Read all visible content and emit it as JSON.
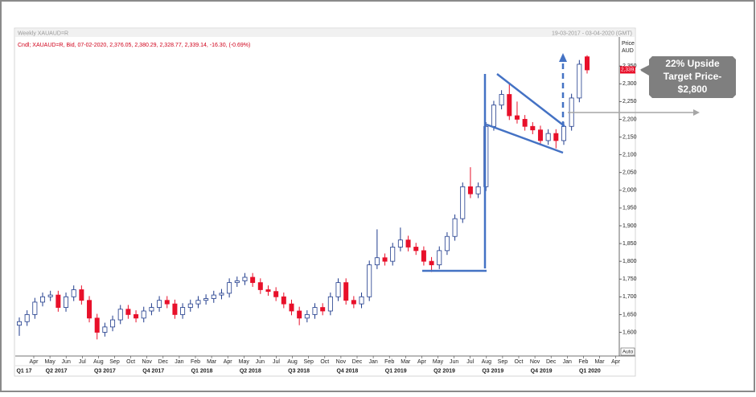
{
  "chart_data": {
    "type": "candlestick",
    "header": "Weekly XAUAUD=R",
    "date_range": "19-03-2017 - 03-04-2020 (GMT)",
    "legend_text": "Cndl; XAUAUD=R, Bid, 07-02-2020, 2,376.05, 2,380.29, 2,328.77, 2,339.14, -16.30, (-0.69%)",
    "y_axis_label": "Price",
    "y_axis_unit": "AUD",
    "last_price": {
      "value": 2339.14,
      "label": "2,339.14"
    },
    "auto_button": "Auto",
    "annotation": [
      "22% Upside",
      "Target Price-",
      "$2,800"
    ],
    "ylim": [
      1540,
      2450
    ],
    "yticks": [
      {
        "value": 1600,
        "label": "1,600"
      },
      {
        "value": 1650,
        "label": "1,650"
      },
      {
        "value": 1700,
        "label": "1,700"
      },
      {
        "value": 1750,
        "label": "1,750"
      },
      {
        "value": 1800,
        "label": "1,800"
      },
      {
        "value": 1850,
        "label": "1,850"
      },
      {
        "value": 1900,
        "label": "1,900"
      },
      {
        "value": 1950,
        "label": "1,950"
      },
      {
        "value": 2000,
        "label": "2,000"
      },
      {
        "value": 2050,
        "label": "2,050"
      },
      {
        "value": 2100,
        "label": "2,100"
      },
      {
        "value": 2150,
        "label": "2,150"
      },
      {
        "value": 2200,
        "label": "2,200"
      },
      {
        "value": 2250,
        "label": "2,250"
      },
      {
        "value": 2300,
        "label": "2,300"
      },
      {
        "value": 2350,
        "label": "2,350"
      }
    ],
    "months": [
      "Apr",
      "May",
      "Jun",
      "Jul",
      "Aug",
      "Sep",
      "Oct",
      "Nov",
      "Dec",
      "Jan",
      "Feb",
      "Mar",
      "Apr",
      "May",
      "Jun",
      "Jul",
      "Aug",
      "Sep",
      "Oct",
      "Nov",
      "Dec",
      "Jan",
      "Feb",
      "Mar",
      "Apr",
      "May",
      "Jun",
      "Jul",
      "Aug",
      "Sep",
      "Oct",
      "Nov",
      "Dec",
      "Jan",
      "Feb",
      "Mar",
      "Apr"
    ],
    "quarters": [
      "Q1 17",
      "Q2 2017",
      "Q3 2017",
      "Q4 2017",
      "Q1 2018",
      "Q2 2018",
      "Q3 2018",
      "Q4 2018",
      "Q1 2019",
      "Q2 2019",
      "Q3 2019",
      "Q4 2019",
      "Q1 2020"
    ],
    "series": [
      {
        "up_color": "#ffffff",
        "up_stroke": "#1f3b8c",
        "down_color": "#e8102a",
        "open": [
          1620,
          1630,
          1650,
          1685,
          1700,
          1705,
          1670,
          1700,
          1720,
          1690,
          1640,
          1600,
          1615,
          1635,
          1665,
          1650,
          1640,
          1660,
          1670,
          1690,
          1680,
          1650,
          1670,
          1680,
          1690,
          1695,
          1705,
          1710,
          1740,
          1745,
          1755,
          1740,
          1720,
          1715,
          1700,
          1680,
          1660,
          1640,
          1650,
          1670,
          1660,
          1700,
          1740,
          1690,
          1680,
          1700,
          1790,
          1810,
          1800,
          1840,
          1860,
          1840,
          1830,
          1800,
          1790,
          1830,
          1870,
          1920,
          2010,
          1990,
          2010,
          2180,
          2240,
          2270,
          2210,
          2200,
          2180,
          2170,
          2140,
          2160,
          2140,
          2180,
          2260,
          2376.05
        ],
        "high": [
          1642,
          1662,
          1697,
          1712,
          1717,
          1717,
          1712,
          1732,
          1732,
          1702,
          1652,
          1627,
          1647,
          1677,
          1677,
          1662,
          1672,
          1682,
          1702,
          1702,
          1692,
          1682,
          1692,
          1702,
          1707,
          1717,
          1722,
          1752,
          1757,
          1767,
          1767,
          1752,
          1732,
          1727,
          1712,
          1692,
          1672,
          1662,
          1682,
          1682,
          1712,
          1752,
          1752,
          1702,
          1712,
          1802,
          1890,
          1822,
          1852,
          1895,
          1872,
          1852,
          1842,
          1812,
          1842,
          1882,
          1932,
          2022,
          2065,
          2022,
          2192,
          2252,
          2282,
          2300,
          2250,
          2212,
          2192,
          2182,
          2172,
          2172,
          2192,
          2272,
          2367,
          2380.29
        ],
        "low": [
          1590,
          1618,
          1638,
          1673,
          1688,
          1658,
          1658,
          1688,
          1678,
          1628,
          1580,
          1588,
          1603,
          1623,
          1638,
          1628,
          1628,
          1648,
          1658,
          1668,
          1638,
          1638,
          1658,
          1668,
          1678,
          1683,
          1693,
          1698,
          1728,
          1733,
          1728,
          1708,
          1703,
          1688,
          1668,
          1648,
          1620,
          1628,
          1638,
          1648,
          1648,
          1688,
          1678,
          1668,
          1668,
          1688,
          1778,
          1788,
          1788,
          1828,
          1828,
          1818,
          1788,
          1770,
          1778,
          1818,
          1858,
          1908,
          1978,
          1978,
          1998,
          2168,
          2228,
          2198,
          2188,
          2168,
          2158,
          2128,
          2128,
          2118,
          2128,
          2168,
          2248,
          2328.77
        ],
        "close": [
          1630,
          1650,
          1685,
          1700,
          1705,
          1670,
          1700,
          1720,
          1690,
          1640,
          1600,
          1615,
          1635,
          1665,
          1650,
          1640,
          1660,
          1670,
          1690,
          1680,
          1650,
          1670,
          1680,
          1690,
          1695,
          1705,
          1710,
          1740,
          1745,
          1755,
          1740,
          1720,
          1715,
          1700,
          1680,
          1660,
          1640,
          1650,
          1670,
          1660,
          1700,
          1740,
          1690,
          1680,
          1700,
          1790,
          1810,
          1800,
          1840,
          1860,
          1840,
          1830,
          1800,
          1790,
          1830,
          1870,
          1920,
          2010,
          1990,
          2010,
          2180,
          2240,
          2270,
          2210,
          2200,
          2180,
          2170,
          2140,
          2160,
          2140,
          2180,
          2260,
          2355,
          2339.14
        ]
      }
    ]
  }
}
